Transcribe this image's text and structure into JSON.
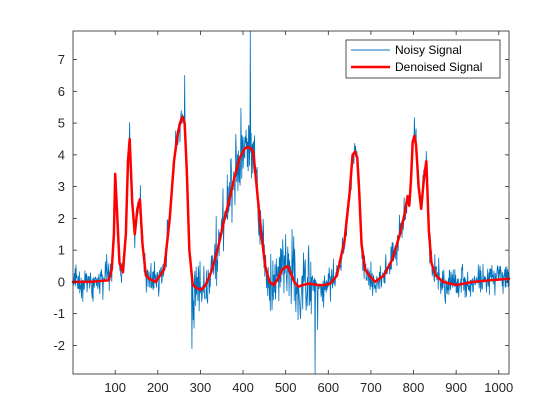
{
  "chart_data": {
    "type": "line",
    "title": "",
    "xlabel": "",
    "ylabel": "",
    "xlim": [
      1,
      1024
    ],
    "ylim": [
      -2.9,
      7.9
    ],
    "xticks": [
      100,
      200,
      300,
      400,
      500,
      600,
      700,
      800,
      900,
      1000
    ],
    "yticks": [
      -2,
      -1,
      0,
      1,
      2,
      3,
      4,
      5,
      6,
      7
    ],
    "grid": false,
    "legend_position": "top-right",
    "legend": [
      "Noisy Signal",
      "Denoised Signal"
    ],
    "series": [
      {
        "name": "Noisy Signal",
        "color": "#0072BD",
        "style": "thin-noisy",
        "samples": 1024,
        "underlying_shape": "Denoised Signal",
        "noise_std_approx": 0.35,
        "noise_std_in_region_280_560": 0.75,
        "extremes": [
          {
            "x": 417,
            "y": 7.9
          },
          {
            "x": 569,
            "y": -2.9
          },
          {
            "x": 575,
            "y": -1.5
          },
          {
            "x": 263,
            "y": 6.5
          },
          {
            "x": 280,
            "y": -2.1
          }
        ]
      },
      {
        "name": "Denoised Signal",
        "color": "#FF0000",
        "style": "thick",
        "x": [
          1,
          40,
          85,
          92,
          97,
          100,
          104,
          110,
          118,
          125,
          130,
          134,
          140,
          146,
          152,
          158,
          164,
          172,
          180,
          195,
          215,
          228,
          238,
          246,
          252,
          258,
          263,
          268,
          274,
          282,
          292,
          302,
          312,
          325,
          340,
          355,
          368,
          380,
          392,
          404,
          412,
          418,
          424,
          432,
          442,
          452,
          462,
          472,
          482,
          492,
          505,
          520,
          530,
          540,
          555,
          575,
          590,
          605,
          620,
          638,
          650,
          657,
          663,
          668,
          672,
          678,
          686,
          696,
          710,
          730,
          750,
          768,
          780,
          786,
          790,
          794,
          798,
          802,
          806,
          812,
          818,
          824,
          830,
          836,
          842,
          852,
          870,
          900,
          940,
          980,
          1024
        ],
        "y": [
          0.0,
          0.0,
          0.05,
          0.4,
          1.5,
          3.4,
          2.3,
          0.6,
          0.3,
          1.5,
          3.8,
          4.5,
          2.5,
          1.5,
          2.3,
          2.6,
          1.2,
          0.2,
          0.1,
          0.0,
          0.4,
          2.0,
          3.8,
          4.6,
          5.0,
          5.2,
          5.0,
          3.5,
          1.0,
          -0.1,
          -0.2,
          -0.25,
          -0.1,
          0.3,
          1.0,
          1.9,
          2.6,
          3.3,
          3.9,
          4.2,
          4.25,
          4.2,
          4.1,
          3.0,
          1.6,
          0.5,
          0.0,
          -0.1,
          0.1,
          0.4,
          0.5,
          0.0,
          -0.15,
          -0.1,
          -0.05,
          -0.1,
          -0.1,
          -0.05,
          0.2,
          1.3,
          2.8,
          4.0,
          4.1,
          3.9,
          3.0,
          1.2,
          0.4,
          0.2,
          0.0,
          0.2,
          0.7,
          1.5,
          2.2,
          2.7,
          2.4,
          3.2,
          4.4,
          4.6,
          4.3,
          3.0,
          2.3,
          3.2,
          3.8,
          1.6,
          0.6,
          0.2,
          0.0,
          -0.1,
          0.0,
          0.05,
          0.1
        ]
      }
    ]
  }
}
